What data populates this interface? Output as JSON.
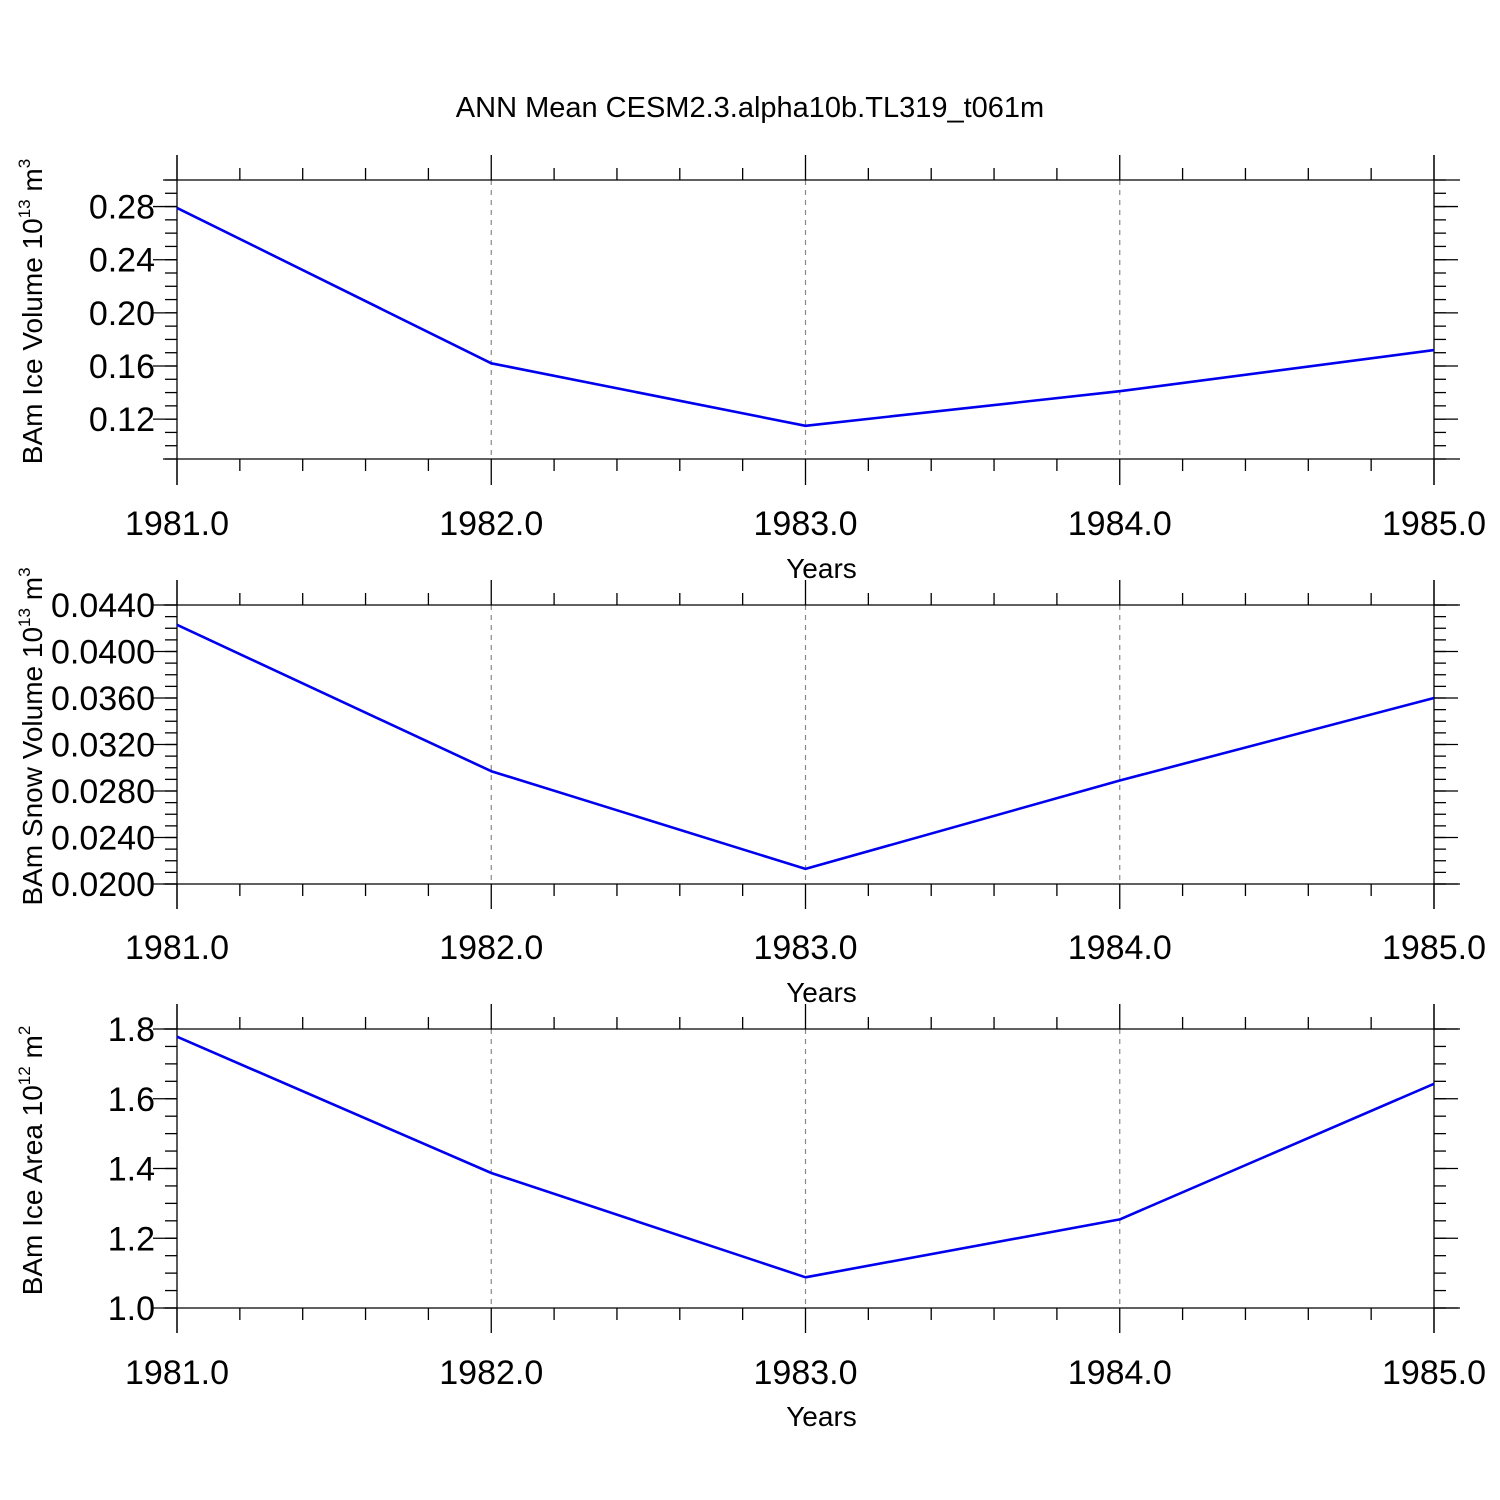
{
  "figure_title": "ANN Mean CESM2.3.alpha10b.TL319_t061m",
  "chart_data": [
    {
      "type": "line",
      "ylabel": "BAm Ice Volume 10",
      "ylabel_exp": "13",
      "ylabel_unit": " m",
      "ylabel_unit_exp": "3",
      "xlabel": "Years",
      "x": [
        1981,
        1982,
        1983,
        1984,
        1985
      ],
      "x_ticks": [
        "1981.0",
        "1982.0",
        "1983.0",
        "1984.0",
        "1985.0"
      ],
      "xlim": [
        1981,
        1985
      ],
      "y_ticks": [
        "0.12",
        "0.16",
        "0.20",
        "0.24",
        "0.28"
      ],
      "ylim": [
        0.09,
        0.3
      ],
      "series": [
        {
          "values": [
            0.279,
            0.162,
            0.115,
            0.141,
            0.172
          ],
          "color": "#0000ee"
        }
      ],
      "grid": "x-dashed"
    },
    {
      "type": "line",
      "ylabel": "BAm Snow Volume 10",
      "ylabel_exp": "13",
      "ylabel_unit": " m",
      "ylabel_unit_exp": "3",
      "xlabel": "Years",
      "x": [
        1981,
        1982,
        1983,
        1984,
        1985
      ],
      "x_ticks": [
        "1981.0",
        "1982.0",
        "1983.0",
        "1984.0",
        "1985.0"
      ],
      "xlim": [
        1981,
        1985
      ],
      "y_ticks": [
        "0.0200",
        "0.0240",
        "0.0280",
        "0.0320",
        "0.0360",
        "0.0400",
        "0.0440"
      ],
      "ylim": [
        0.02,
        0.044
      ],
      "series": [
        {
          "values": [
            0.0423,
            0.0297,
            0.0213,
            0.0289,
            0.036
          ],
          "color": "#0000ee"
        }
      ],
      "grid": "x-dashed"
    },
    {
      "type": "line",
      "ylabel": "BAm Ice Area 10",
      "ylabel_exp": "12",
      "ylabel_unit": " m",
      "ylabel_unit_exp": "2",
      "xlabel": "Years",
      "x": [
        1981,
        1982,
        1983,
        1984,
        1985
      ],
      "x_ticks": [
        "1981.0",
        "1982.0",
        "1983.0",
        "1984.0",
        "1985.0"
      ],
      "xlim": [
        1981,
        1985
      ],
      "y_ticks": [
        "1.0",
        "1.2",
        "1.4",
        "1.6",
        "1.8"
      ],
      "ylim": [
        1.0,
        1.8
      ],
      "series": [
        {
          "values": [
            1.778,
            1.387,
            1.088,
            1.254,
            1.643
          ],
          "color": "#0000ee"
        }
      ],
      "grid": "x-dashed"
    }
  ]
}
